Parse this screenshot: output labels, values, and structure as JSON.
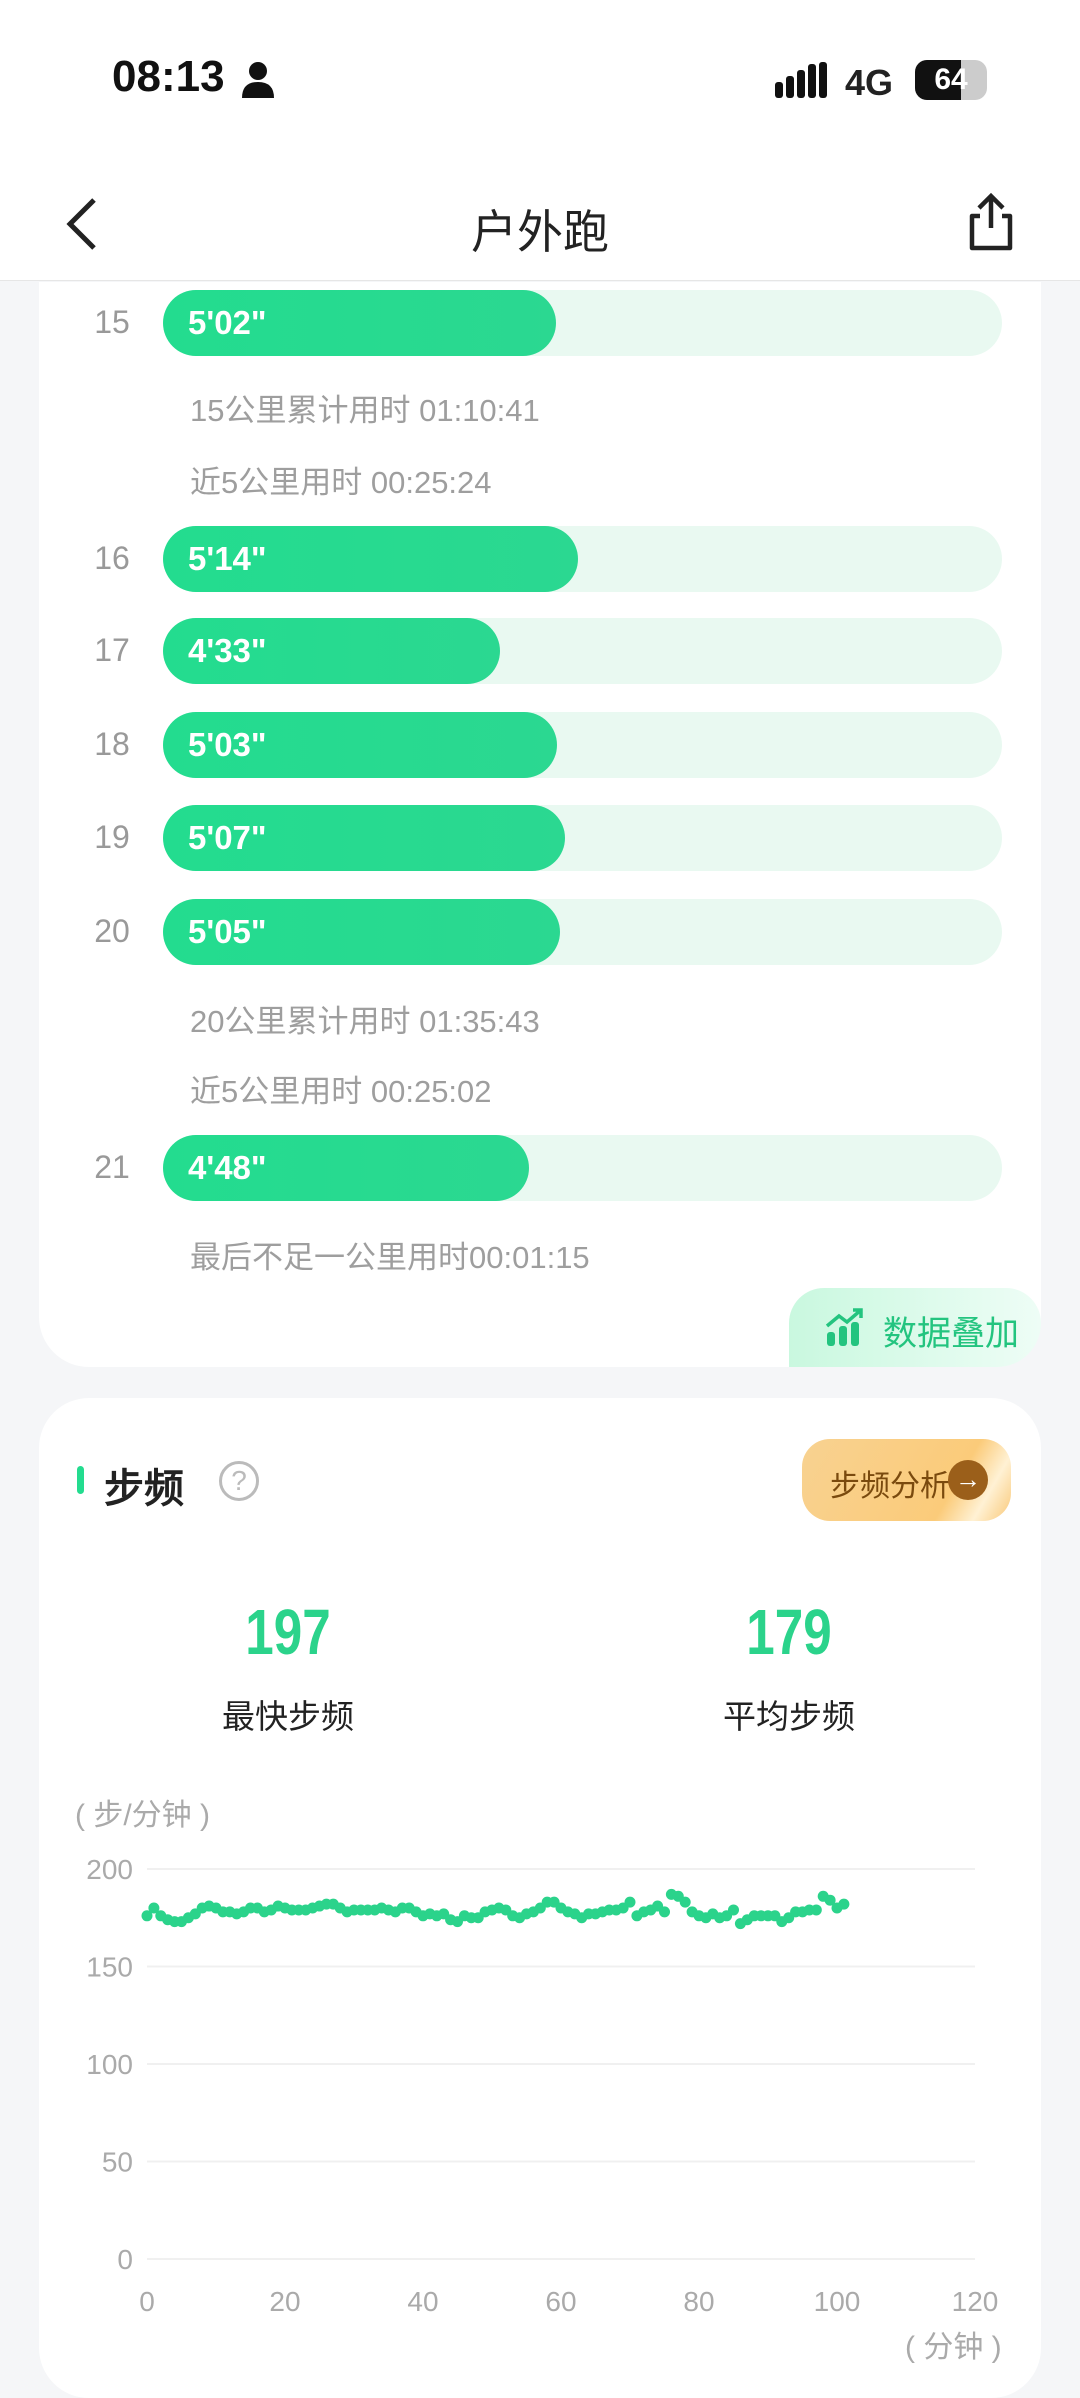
{
  "status_bar": {
    "time": "08:13",
    "network": "4G",
    "battery": "64"
  },
  "header": {
    "title": "户外跑"
  },
  "splits": [
    {
      "km": "15",
      "pace": "5'02\"",
      "fill": 0.468
    },
    {
      "km": "16",
      "pace": "5'14\"",
      "fill": 0.495
    },
    {
      "km": "17",
      "pace": "4'33\"",
      "fill": 0.402
    },
    {
      "km": "18",
      "pace": "5'03\"",
      "fill": 0.47
    },
    {
      "km": "19",
      "pace": "5'07\"",
      "fill": 0.479
    },
    {
      "km": "20",
      "pace": "5'05\"",
      "fill": 0.473
    },
    {
      "km": "21",
      "pace": "4'48\"",
      "fill": 0.436
    }
  ],
  "split_notes": {
    "cum15": "15公里累计用时 01:10:41",
    "last5_15": "近5公里用时 00:25:24",
    "cum20": "20公里累计用时 01:35:43",
    "last5_20": "近5公里用时 00:25:02",
    "final": "最后不足一公里用时00:01:15"
  },
  "overlay_button": "数据叠加",
  "cadence": {
    "title": "步频",
    "analysis_button": "步频分析",
    "max_value": "197",
    "max_label": "最快步频",
    "avg_value": "179",
    "avg_label": "平均步频"
  },
  "colors": {
    "accent": "#23dc8f",
    "gold": "#f8d291"
  },
  "chart_data": {
    "type": "scatter",
    "ylabel": "( 步/分钟 )",
    "xlabel": "( 分钟 )",
    "xlim": [
      0,
      120
    ],
    "ylim": [
      0,
      200
    ],
    "x_ticks": [
      "0",
      "20",
      "40",
      "60",
      "80",
      "100",
      "120"
    ],
    "y_ticks": [
      "0",
      "50",
      "100",
      "150",
      "200"
    ],
    "grid": true,
    "x": [
      0,
      1,
      2,
      3,
      4,
      5,
      6,
      7,
      8,
      9,
      10,
      11,
      12,
      13,
      14,
      15,
      16,
      17,
      18,
      19,
      20,
      21,
      22,
      23,
      24,
      25,
      26,
      27,
      28,
      29,
      30,
      31,
      32,
      33,
      34,
      35,
      36,
      37,
      38,
      39,
      40,
      41,
      42,
      43,
      44,
      45,
      46,
      47,
      48,
      49,
      50,
      51,
      52,
      53,
      54,
      55,
      56,
      57,
      58,
      59,
      60,
      61,
      62,
      63,
      64,
      65,
      66,
      67,
      68,
      69,
      70,
      71,
      72,
      73,
      74,
      75,
      76,
      77,
      78,
      79,
      80,
      81,
      82,
      83,
      84,
      85,
      86,
      87,
      88,
      89,
      90,
      91,
      92,
      93,
      94,
      95,
      96,
      97,
      98,
      99,
      100,
      101
    ],
    "y": [
      176,
      180,
      176,
      174,
      173,
      173,
      175,
      177,
      180,
      181,
      180,
      178,
      178,
      177,
      178,
      180,
      180,
      178,
      179,
      181,
      180,
      179,
      179,
      179,
      180,
      181,
      182,
      182,
      180,
      178,
      179,
      179,
      179,
      179,
      180,
      179,
      178,
      180,
      180,
      178,
      176,
      177,
      176,
      177,
      174,
      173,
      176,
      175,
      175,
      178,
      179,
      180,
      179,
      176,
      175,
      177,
      178,
      180,
      183,
      183,
      180,
      178,
      177,
      175,
      177,
      177,
      178,
      179,
      179,
      180,
      183,
      176,
      178,
      179,
      181,
      178,
      187,
      186,
      183,
      178,
      176,
      175,
      177,
      175,
      176,
      179,
      172,
      174,
      176,
      176,
      176,
      176,
      173,
      175,
      178,
      178,
      179,
      179,
      186,
      184,
      180,
      182
    ]
  }
}
